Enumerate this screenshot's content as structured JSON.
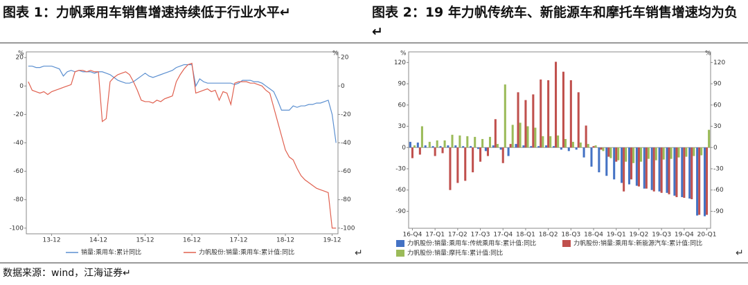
{
  "header": {
    "left_title": "图表 1：力帆乘用车销售增速持续低于行业水平↵",
    "right_title": "图表 2：19 年力帆传统车、新能源车和摩托车销售增速均为负↵"
  },
  "chart_data": [
    {
      "type": "line",
      "y_unit": "%",
      "y2_unit": "%",
      "categories": [
        null,
        null,
        null,
        null,
        null,
        null,
        "13-12",
        null,
        null,
        null,
        null,
        null,
        null,
        null,
        null,
        null,
        null,
        null,
        "14-12",
        null,
        null,
        null,
        null,
        null,
        null,
        null,
        null,
        null,
        null,
        null,
        "15-12",
        null,
        null,
        null,
        null,
        null,
        null,
        null,
        null,
        null,
        null,
        null,
        "16-12",
        null,
        null,
        null,
        null,
        null,
        null,
        null,
        null,
        null,
        null,
        null,
        "17-12",
        null,
        null,
        null,
        null,
        null,
        null,
        null,
        null,
        null,
        null,
        null,
        "18-12",
        null,
        null,
        null,
        null,
        null,
        null,
        null,
        null,
        null,
        null,
        null,
        "19-12",
        null
      ],
      "series": [
        {
          "name": "销量:乘用车:累计同比",
          "color": "#5b8fd0",
          "values": [
            14,
            14,
            13,
            13,
            14,
            14,
            14,
            13,
            12,
            7,
            10,
            11,
            10,
            11,
            10,
            10,
            10,
            9,
            10,
            10,
            9,
            8,
            6,
            4,
            3,
            2,
            2,
            3,
            5,
            7,
            9,
            7,
            6,
            7,
            8,
            9,
            10,
            11,
            13,
            14,
            15,
            15,
            15,
            0,
            5,
            3,
            2,
            2,
            2,
            2,
            2,
            2,
            2,
            1,
            2,
            4,
            4,
            4,
            3,
            3,
            2,
            0,
            -2,
            -4,
            -10,
            -17,
            -17,
            -17,
            -14,
            -15,
            -14,
            -14,
            -13,
            -13,
            -12,
            -12,
            -11,
            -10,
            -20,
            -40
          ]
        },
        {
          "name": "力帆股份:销量:乘用车:累计值:同比",
          "color": "#e0604f",
          "axis": "y2",
          "values": [
            3,
            -3,
            -4,
            -5,
            -4,
            -6,
            -4,
            -3,
            -2,
            -1,
            0,
            1,
            10,
            11,
            11,
            10,
            11,
            10,
            10,
            -25,
            -23,
            3,
            6,
            8,
            9,
            10,
            8,
            3,
            -3,
            -10,
            -11,
            -11,
            -12,
            -10,
            -11,
            -9,
            -8,
            -7,
            3,
            8,
            12,
            15,
            16,
            -5,
            -4,
            -3,
            -2,
            -4,
            -3,
            -10,
            -4,
            -5,
            -13,
            2,
            3,
            3,
            3,
            2,
            2,
            1,
            0,
            -3,
            -5,
            -15,
            -25,
            -35,
            -45,
            -50,
            -52,
            -58,
            -63,
            -66,
            -68,
            -70,
            -72,
            -73,
            -74,
            -75,
            -100,
            -100
          ]
        }
      ],
      "ylim": [
        -104,
        24
      ],
      "yticks": [
        20,
        0,
        -20,
        -40,
        -60,
        -80,
        -100
      ],
      "y2lim": [
        -104,
        24
      ],
      "y2ticks": [
        20,
        0,
        -20,
        -40,
        -60,
        -80,
        -100
      ]
    },
    {
      "type": "bar",
      "y_unit": "%",
      "y2_unit": "%",
      "categories": [
        "16-Q4",
        null,
        null,
        "17-Q1",
        null,
        null,
        "17-Q2",
        null,
        null,
        "17-Q3",
        null,
        null,
        "17-Q4",
        null,
        null,
        "18-Q1",
        null,
        null,
        "18-Q2",
        null,
        null,
        "18-Q3",
        null,
        null,
        "18-Q4",
        null,
        null,
        "19-Q1",
        null,
        null,
        "19-Q2",
        null,
        null,
        "19-Q3",
        null,
        null,
        "19-Q4",
        null,
        null,
        "20-Q1"
      ],
      "series": [
        {
          "name": "力帆股份:销量:乘用车:传统乘用车:累计值:同比",
          "color": "#4472c4",
          "values": [
            8,
            7,
            3,
            2,
            2,
            3,
            3,
            2,
            2,
            -2,
            -5,
            3,
            -3,
            -12,
            5,
            3,
            2,
            2,
            3,
            2,
            -3,
            -5,
            -3,
            -14,
            -27,
            -35,
            -40,
            -45,
            -50,
            -52,
            -54,
            -58,
            -60,
            -62,
            -64,
            -68,
            -70,
            -72,
            -96,
            -97
          ]
        },
        {
          "name": "力帆股份:销量:乘用车:新能源汽车:累计值:同比",
          "color": "#c0504d",
          "values": [
            -15,
            -10,
            0,
            -12,
            -8,
            -60,
            -50,
            -47,
            -35,
            -20,
            -12,
            40,
            -22,
            5,
            78,
            67,
            75,
            96,
            95,
            121,
            107,
            95,
            78,
            31,
            2,
            -3,
            -13,
            -20,
            -62,
            -45,
            -55,
            -58,
            -62,
            -64,
            -66,
            -70,
            -71,
            -73,
            -95,
            -95
          ]
        },
        {
          "name": "力帆股份:销量:摩托车:累计值:同比",
          "color": "#9bbb59",
          "values": [
            3,
            30,
            8,
            10,
            10,
            18,
            17,
            16,
            15,
            12,
            15,
            5,
            89,
            32,
            35,
            30,
            28,
            16,
            16,
            17,
            12,
            8,
            7,
            5,
            3,
            -5,
            -15,
            -18,
            -20,
            -22,
            -20,
            -16,
            -18,
            -17,
            -16,
            -14,
            -13,
            -12,
            -11,
            25
          ]
        }
      ],
      "ylim": [
        -114,
        135
      ],
      "yticks": [
        120,
        90,
        60,
        30,
        0,
        -30,
        -60,
        -90
      ],
      "y2lim": [
        -114,
        135
      ],
      "y2ticks": [
        120,
        90,
        60,
        30,
        0,
        -30,
        -60,
        -90
      ]
    }
  ],
  "marks": [
    "↵",
    "↵"
  ],
  "source": "数据来源：wind，江海证券↵"
}
